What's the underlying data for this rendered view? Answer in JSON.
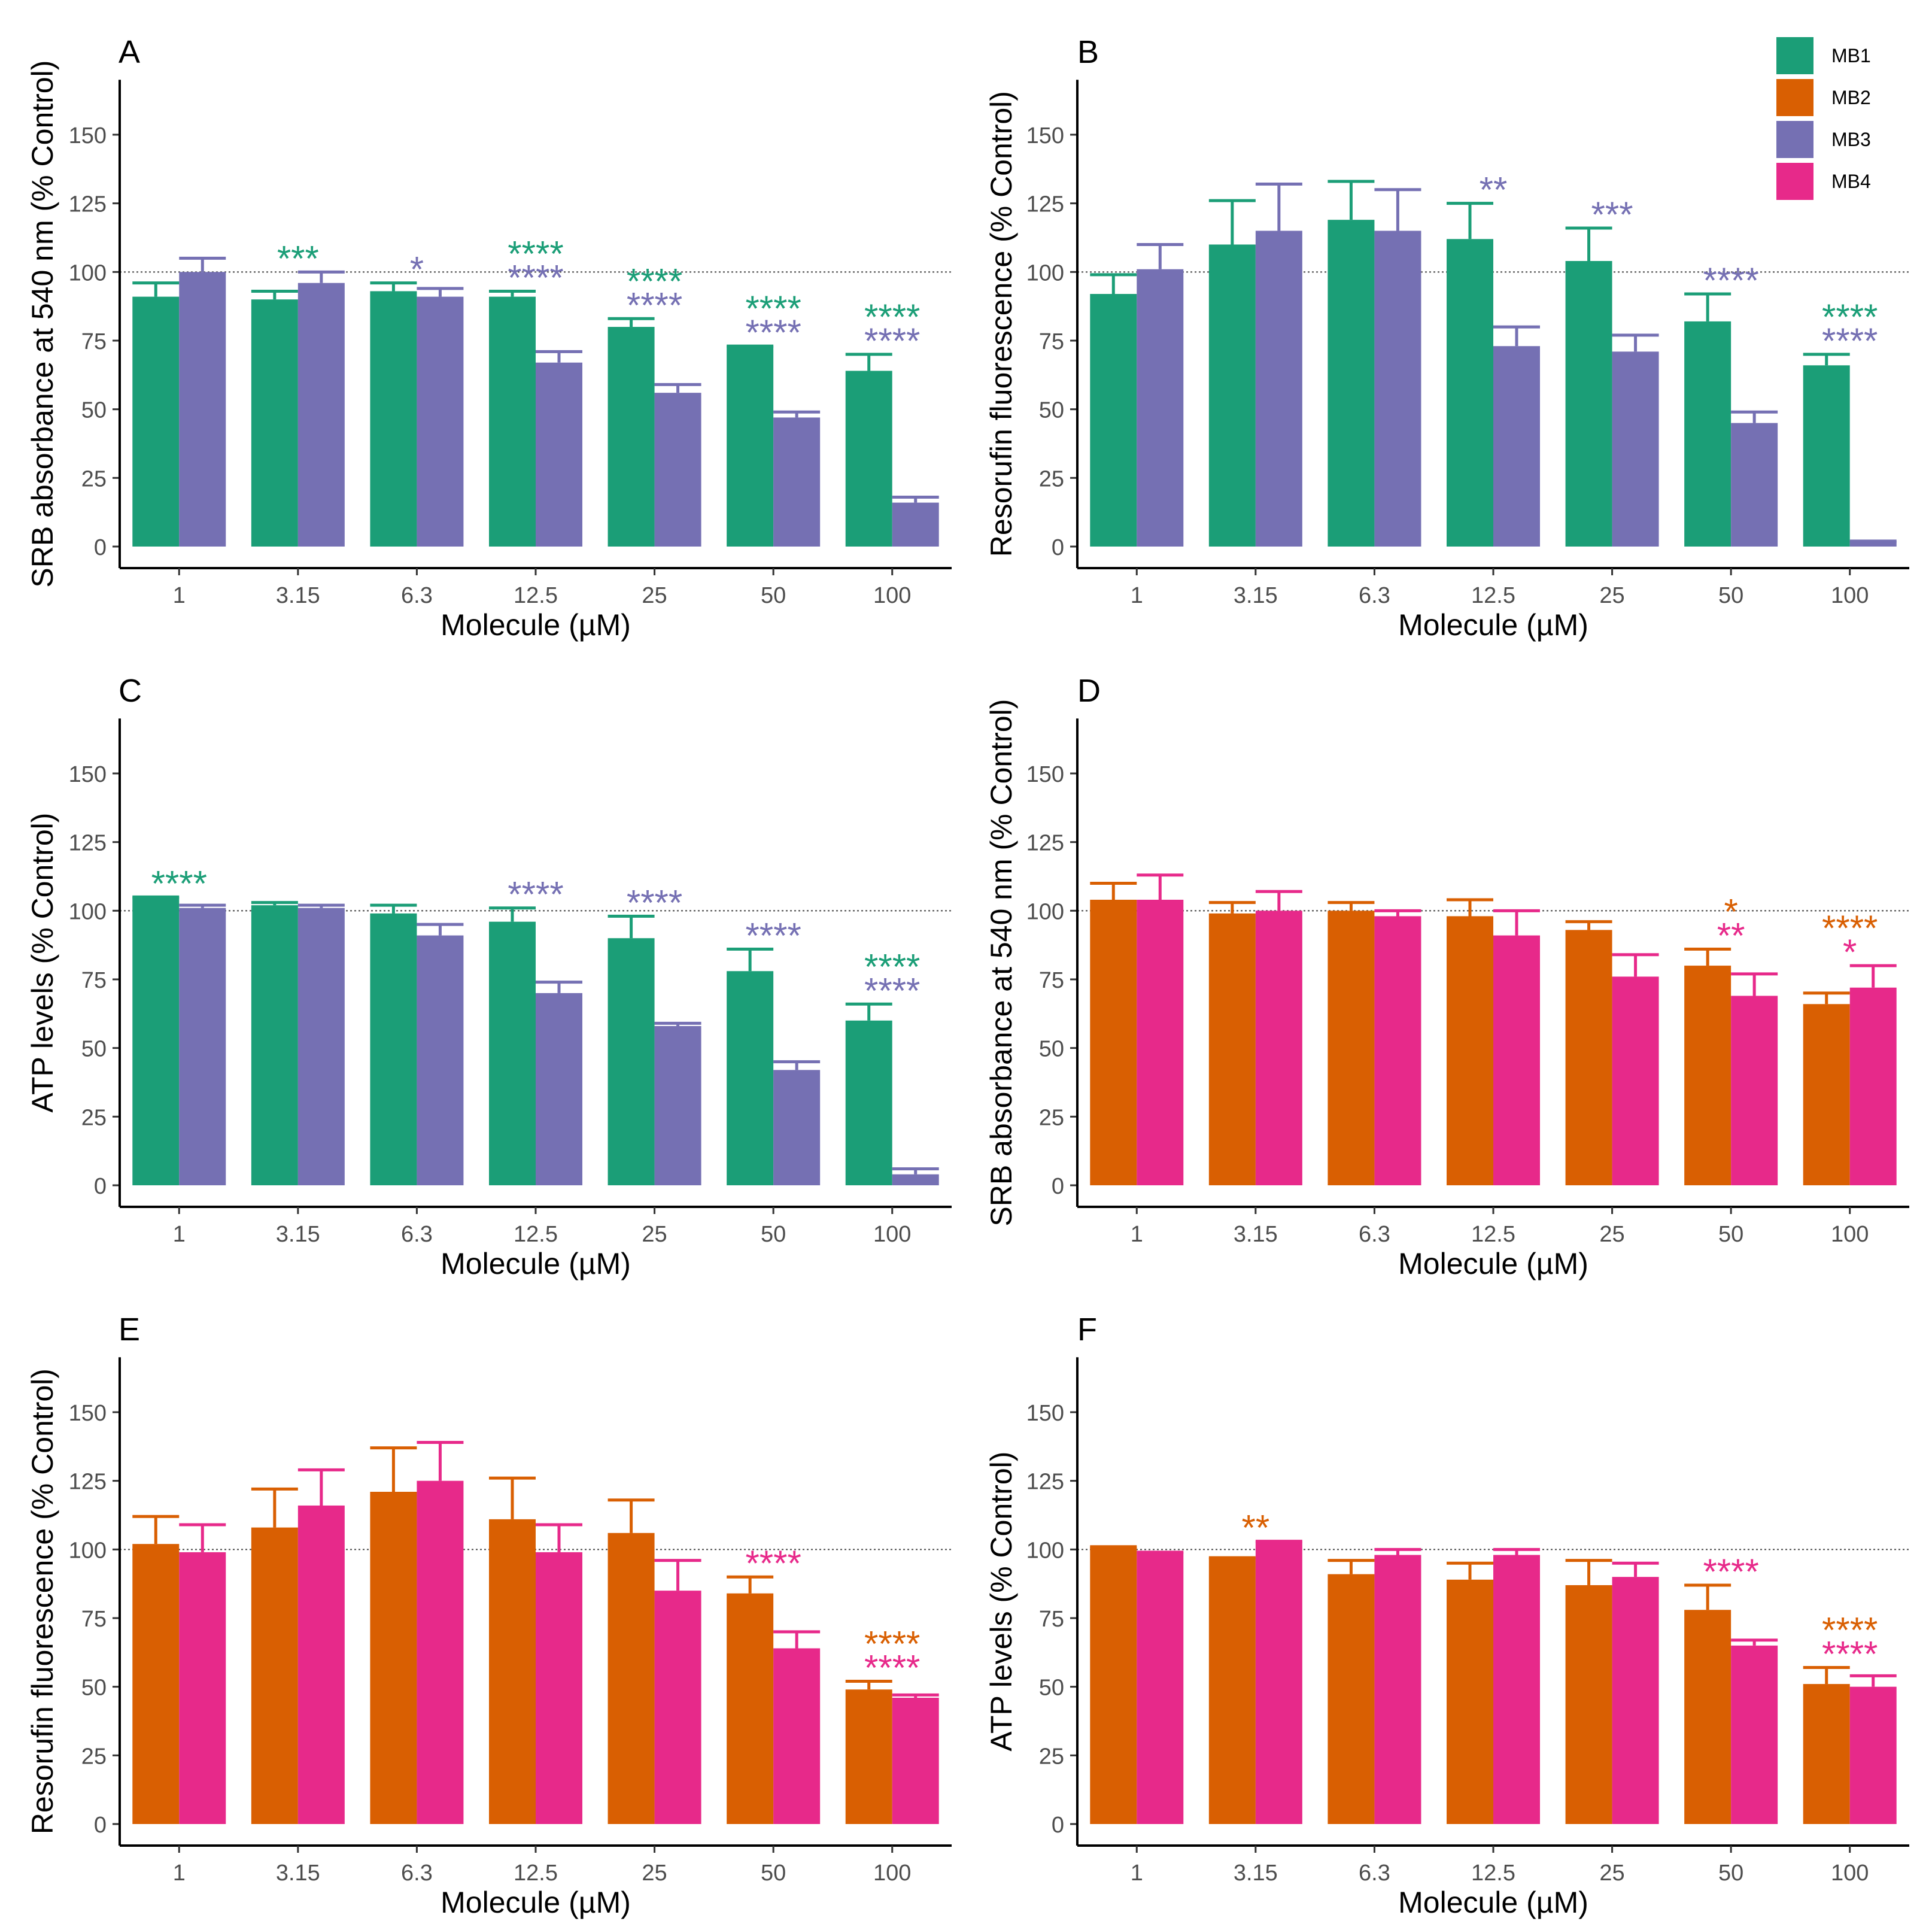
{
  "figure": {
    "legend": [
      {
        "label": "MB1",
        "color": "#1b9e77"
      },
      {
        "label": "MB2",
        "color": "#d95f02"
      },
      {
        "label": "MB3",
        "color": "#7570b3"
      },
      {
        "label": "MB4",
        "color": "#e7298a"
      }
    ]
  },
  "chart_data": [
    {
      "panel": "A",
      "type": "bar",
      "ylabel": "SRB absorbance at 540 nm (% Control)",
      "xlabel": "Molecule (µM)",
      "categories": [
        "1",
        "3.15",
        "6.3",
        "12.5",
        "25",
        "50",
        "100"
      ],
      "ylim": [
        0,
        170
      ],
      "yticks": [
        0,
        25,
        50,
        75,
        100,
        125,
        150
      ],
      "refline": 100,
      "series": [
        {
          "name": "MB1",
          "color": "#1b9e77",
          "values": [
            91,
            90,
            93,
            91,
            80,
            73,
            64
          ],
          "errors": [
            5,
            3,
            3,
            2,
            3,
            0,
            6
          ]
        },
        {
          "name": "MB3",
          "color": "#7570b3",
          "values": [
            100,
            96,
            91,
            67,
            56,
            47,
            16
          ],
          "errors": [
            5,
            4,
            3,
            4,
            3,
            2,
            2
          ]
        }
      ],
      "annotations": [
        {
          "category_index": 1,
          "lines": [
            {
              "text": "***",
              "series": "MB1"
            }
          ]
        },
        {
          "category_index": 2,
          "lines": [
            {
              "text": "*",
              "series": "MB3"
            }
          ]
        },
        {
          "category_index": 3,
          "lines": [
            {
              "text": "****",
              "series": "MB1"
            },
            {
              "text": "****",
              "series": "MB3"
            }
          ]
        },
        {
          "category_index": 4,
          "lines": [
            {
              "text": "****",
              "series": "MB1"
            },
            {
              "text": "****",
              "series": "MB3"
            }
          ]
        },
        {
          "category_index": 5,
          "lines": [
            {
              "text": "****",
              "series": "MB1"
            },
            {
              "text": "****",
              "series": "MB3"
            }
          ]
        },
        {
          "category_index": 6,
          "lines": [
            {
              "text": "****",
              "series": "MB1"
            },
            {
              "text": "****",
              "series": "MB3"
            }
          ]
        }
      ]
    },
    {
      "panel": "B",
      "type": "bar",
      "ylabel": "Resorufin fluorescence (% Control)",
      "xlabel": "Molecule (µM)",
      "categories": [
        "1",
        "3.15",
        "6.3",
        "12.5",
        "25",
        "50",
        "100"
      ],
      "ylim": [
        0,
        170
      ],
      "yticks": [
        0,
        25,
        50,
        75,
        100,
        125,
        150
      ],
      "refline": 100,
      "series": [
        {
          "name": "MB1",
          "color": "#1b9e77",
          "values": [
            92,
            110,
            119,
            112,
            104,
            82,
            66
          ],
          "errors": [
            7,
            16,
            14,
            13,
            12,
            10,
            4
          ]
        },
        {
          "name": "MB3",
          "color": "#7570b3",
          "values": [
            101,
            115,
            115,
            73,
            71,
            45,
            2
          ],
          "errors": [
            9,
            17,
            15,
            7,
            6,
            4,
            0
          ]
        }
      ],
      "annotations": [
        {
          "category_index": 3,
          "lines": [
            {
              "text": "**",
              "series": "MB3"
            }
          ]
        },
        {
          "category_index": 4,
          "lines": [
            {
              "text": "***",
              "series": "MB3"
            }
          ]
        },
        {
          "category_index": 5,
          "lines": [
            {
              "text": "****",
              "series": "MB3"
            }
          ]
        },
        {
          "category_index": 6,
          "lines": [
            {
              "text": "****",
              "series": "MB1"
            },
            {
              "text": "****",
              "series": "MB3"
            }
          ]
        }
      ]
    },
    {
      "panel": "C",
      "type": "bar",
      "ylabel": "ATP levels (% Control)",
      "xlabel": "Molecule (µM)",
      "categories": [
        "1",
        "3.15",
        "6.3",
        "12.5",
        "25",
        "50",
        "100"
      ],
      "ylim": [
        0,
        170
      ],
      "yticks": [
        0,
        25,
        50,
        75,
        100,
        125,
        150
      ],
      "refline": 100,
      "series": [
        {
          "name": "MB1",
          "color": "#1b9e77",
          "values": [
            105,
            102,
            99,
            96,
            90,
            78,
            60
          ],
          "errors": [
            0,
            1,
            3,
            5,
            8,
            8,
            6
          ]
        },
        {
          "name": "MB3",
          "color": "#7570b3",
          "values": [
            101,
            101,
            91,
            70,
            58,
            42,
            4
          ],
          "errors": [
            1,
            1,
            4,
            4,
            1,
            3,
            2
          ]
        }
      ],
      "annotations": [
        {
          "category_index": 0,
          "lines": [
            {
              "text": "****",
              "series": "MB1"
            }
          ]
        },
        {
          "category_index": 3,
          "lines": [
            {
              "text": "****",
              "series": "MB3"
            }
          ]
        },
        {
          "category_index": 4,
          "lines": [
            {
              "text": "****",
              "series": "MB3"
            }
          ]
        },
        {
          "category_index": 5,
          "lines": [
            {
              "text": "****",
              "series": "MB3"
            }
          ]
        },
        {
          "category_index": 6,
          "lines": [
            {
              "text": "****",
              "series": "MB1"
            },
            {
              "text": "****",
              "series": "MB3"
            }
          ]
        }
      ]
    },
    {
      "panel": "D",
      "type": "bar",
      "ylabel": "SRB absorbance at 540 nm (% Control)",
      "xlabel": "Molecule (µM)",
      "categories": [
        "1",
        "3.15",
        "6.3",
        "12.5",
        "25",
        "50",
        "100"
      ],
      "ylim": [
        0,
        170
      ],
      "yticks": [
        0,
        25,
        50,
        75,
        100,
        125,
        150
      ],
      "refline": 100,
      "series": [
        {
          "name": "MB2",
          "color": "#d95f02",
          "values": [
            104,
            99,
            100,
            98,
            93,
            80,
            66
          ],
          "errors": [
            6,
            4,
            3,
            6,
            3,
            6,
            4
          ]
        },
        {
          "name": "MB4",
          "color": "#e7298a",
          "values": [
            104,
            100,
            98,
            91,
            76,
            69,
            72
          ],
          "errors": [
            9,
            7,
            2,
            9,
            8,
            8,
            8
          ]
        }
      ],
      "annotations": [
        {
          "category_index": 5,
          "lines": [
            {
              "text": "*",
              "series": "MB2"
            },
            {
              "text": "**",
              "series": "MB4"
            }
          ]
        },
        {
          "category_index": 6,
          "lines": [
            {
              "text": "****",
              "series": "MB2"
            },
            {
              "text": "*",
              "series": "MB4"
            }
          ]
        }
      ]
    },
    {
      "panel": "E",
      "type": "bar",
      "ylabel": "Resorufin fluorescence (% Control)",
      "xlabel": "Molecule (µM)",
      "categories": [
        "1",
        "3.15",
        "6.3",
        "12.5",
        "25",
        "50",
        "100"
      ],
      "ylim": [
        0,
        170
      ],
      "yticks": [
        0,
        25,
        50,
        75,
        100,
        125,
        150
      ],
      "refline": 100,
      "series": [
        {
          "name": "MB2",
          "color": "#d95f02",
          "values": [
            102,
            108,
            121,
            111,
            106,
            84,
            49
          ],
          "errors": [
            10,
            14,
            16,
            15,
            12,
            6,
            3
          ]
        },
        {
          "name": "MB4",
          "color": "#e7298a",
          "values": [
            99,
            116,
            125,
            99,
            85,
            64,
            46
          ],
          "errors": [
            10,
            13,
            14,
            10,
            11,
            6,
            1
          ]
        }
      ],
      "annotations": [
        {
          "category_index": 5,
          "lines": [
            {
              "text": "****",
              "series": "MB4"
            }
          ]
        },
        {
          "category_index": 6,
          "lines": [
            {
              "text": "****",
              "series": "MB2"
            },
            {
              "text": "****",
              "series": "MB4"
            }
          ]
        }
      ]
    },
    {
      "panel": "F",
      "type": "bar",
      "ylabel": "ATP levels (% Control)",
      "xlabel": "Molecule (µM)",
      "categories": [
        "1",
        "3.15",
        "6.3",
        "12.5",
        "25",
        "50",
        "100"
      ],
      "ylim": [
        0,
        170
      ],
      "yticks": [
        0,
        25,
        50,
        75,
        100,
        125,
        150
      ],
      "refline": 100,
      "series": [
        {
          "name": "MB2",
          "color": "#d95f02",
          "values": [
            101,
            97,
            91,
            89,
            87,
            78,
            51
          ],
          "errors": [
            0,
            0,
            5,
            6,
            9,
            9,
            6
          ]
        },
        {
          "name": "MB4",
          "color": "#e7298a",
          "values": [
            99,
            103,
            98,
            98,
            90,
            65,
            50
          ],
          "errors": [
            0,
            0,
            2,
            2,
            5,
            2,
            4
          ]
        }
      ],
      "annotations": [
        {
          "category_index": 1,
          "lines": [
            {
              "text": "**",
              "series": "MB2"
            }
          ]
        },
        {
          "category_index": 5,
          "lines": [
            {
              "text": "****",
              "series": "MB4"
            }
          ]
        },
        {
          "category_index": 6,
          "lines": [
            {
              "text": "****",
              "series": "MB2"
            },
            {
              "text": "****",
              "series": "MB4"
            }
          ]
        }
      ]
    }
  ]
}
